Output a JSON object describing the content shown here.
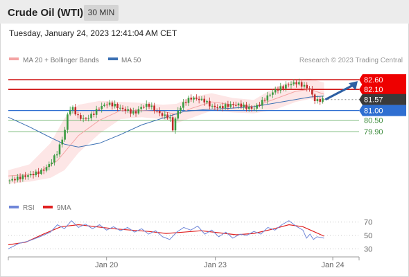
{
  "header": {
    "instrument": "Crude Oil (WTI)",
    "timeframe": "30 MIN",
    "timestamp": "Tuesday, January 24, 2023 12:41:04 AM CET",
    "source": "Research © 2023 Trading Central"
  },
  "legend": {
    "price": [
      {
        "label": "MA 20 + Bollinger Bands",
        "color": "#f4a3a3"
      },
      {
        "label": "MA 50",
        "color": "#3a6fb3"
      }
    ],
    "rsi": [
      {
        "label": "RSI",
        "color": "#6f86d8"
      },
      {
        "label": "9MA",
        "color": "#e02020"
      }
    ]
  },
  "colors": {
    "up": "#3a9a40",
    "down": "#c12a2a",
    "resistance": "#cc0000",
    "pivot": "#2f6fd1",
    "support": "#7cbb7c",
    "last": "#3a3a3a",
    "band": "#fde2e2",
    "arrow": "#2e5fa3"
  },
  "chart_data": [
    {
      "type": "candlestick",
      "title": "Crude Oil (WTI)",
      "timeframe": "30 MIN",
      "ylim": [
        77.1,
        83.0
      ],
      "x_ticks": [
        {
          "label": "Jan 20",
          "pos": 0.28
        },
        {
          "label": "Jan 23",
          "pos": 0.59
        },
        {
          "label": "Jan 24",
          "pos": 0.925
        }
      ],
      "levels": [
        {
          "value": 82.6,
          "label": "82.60",
          "kind": "resistance"
        },
        {
          "value": 82.1,
          "label": "82.10",
          "kind": "resistance"
        },
        {
          "value": 81.57,
          "label": "81.57",
          "kind": "last"
        },
        {
          "value": 81.0,
          "label": "81.00",
          "kind": "pivot"
        },
        {
          "value": 80.5,
          "label": "80.50",
          "kind": "support"
        },
        {
          "value": 79.9,
          "label": "79.90",
          "kind": "support"
        }
      ],
      "close_series": [
        [
          0.0,
          77.35
        ],
        [
          0.02,
          77.45
        ],
        [
          0.04,
          77.55
        ],
        [
          0.06,
          77.65
        ],
        [
          0.08,
          77.75
        ],
        [
          0.1,
          77.9
        ],
        [
          0.12,
          78.25
        ],
        [
          0.14,
          78.85
        ],
        [
          0.16,
          79.85
        ],
        [
          0.17,
          80.9
        ],
        [
          0.18,
          81.2
        ],
        [
          0.2,
          80.65
        ],
        [
          0.22,
          80.55
        ],
        [
          0.24,
          80.8
        ],
        [
          0.26,
          81.15
        ],
        [
          0.28,
          81.35
        ],
        [
          0.3,
          81.3
        ],
        [
          0.32,
          81.1
        ],
        [
          0.34,
          81.0
        ],
        [
          0.36,
          80.85
        ],
        [
          0.38,
          81.2
        ],
        [
          0.4,
          81.3
        ],
        [
          0.42,
          81.0
        ],
        [
          0.44,
          80.75
        ],
        [
          0.46,
          80.65
        ],
        [
          0.47,
          79.95
        ],
        [
          0.48,
          80.9
        ],
        [
          0.5,
          81.4
        ],
        [
          0.52,
          81.65
        ],
        [
          0.54,
          81.6
        ],
        [
          0.56,
          81.5
        ],
        [
          0.58,
          81.2
        ],
        [
          0.6,
          81.15
        ],
        [
          0.62,
          81.25
        ],
        [
          0.64,
          81.3
        ],
        [
          0.66,
          81.3
        ],
        [
          0.68,
          81.15
        ],
        [
          0.7,
          81.1
        ],
        [
          0.72,
          81.4
        ],
        [
          0.74,
          81.75
        ],
        [
          0.76,
          82.05
        ],
        [
          0.78,
          82.2
        ],
        [
          0.8,
          82.35
        ],
        [
          0.82,
          82.45
        ],
        [
          0.84,
          82.3
        ],
        [
          0.85,
          82.2
        ],
        [
          0.86,
          82.1
        ],
        [
          0.87,
          81.6
        ],
        [
          0.88,
          81.5
        ],
        [
          0.89,
          81.55
        ],
        [
          0.9,
          81.57
        ]
      ],
      "ma20": [
        [
          0.0,
          77.6
        ],
        [
          0.08,
          77.7
        ],
        [
          0.14,
          78.4
        ],
        [
          0.2,
          79.7
        ],
        [
          0.26,
          80.5
        ],
        [
          0.32,
          81.0
        ],
        [
          0.38,
          81.0
        ],
        [
          0.44,
          80.95
        ],
        [
          0.48,
          80.8
        ],
        [
          0.52,
          81.1
        ],
        [
          0.58,
          81.45
        ],
        [
          0.64,
          81.3
        ],
        [
          0.7,
          81.2
        ],
        [
          0.76,
          81.6
        ],
        [
          0.82,
          82.0
        ],
        [
          0.86,
          82.1
        ],
        [
          0.9,
          81.85
        ]
      ],
      "bollinger": {
        "upper": [
          [
            0.0,
            77.9
          ],
          [
            0.06,
            78.2
          ],
          [
            0.12,
            79.3
          ],
          [
            0.16,
            80.6
          ],
          [
            0.2,
            81.3
          ],
          [
            0.26,
            81.5
          ],
          [
            0.32,
            81.45
          ],
          [
            0.38,
            81.4
          ],
          [
            0.44,
            81.3
          ],
          [
            0.48,
            81.35
          ],
          [
            0.52,
            81.7
          ],
          [
            0.58,
            81.9
          ],
          [
            0.64,
            81.65
          ],
          [
            0.7,
            81.55
          ],
          [
            0.76,
            82.2
          ],
          [
            0.82,
            82.6
          ],
          [
            0.86,
            82.65
          ],
          [
            0.9,
            82.45
          ]
        ],
        "lower": [
          [
            0.0,
            77.2
          ],
          [
            0.06,
            77.3
          ],
          [
            0.12,
            77.5
          ],
          [
            0.16,
            77.9
          ],
          [
            0.2,
            78.8
          ],
          [
            0.26,
            79.8
          ],
          [
            0.32,
            80.55
          ],
          [
            0.38,
            80.65
          ],
          [
            0.44,
            80.55
          ],
          [
            0.48,
            80.35
          ],
          [
            0.52,
            80.6
          ],
          [
            0.58,
            81.0
          ],
          [
            0.64,
            80.9
          ],
          [
            0.7,
            80.85
          ],
          [
            0.76,
            81.05
          ],
          [
            0.82,
            81.45
          ],
          [
            0.86,
            81.6
          ],
          [
            0.9,
            81.35
          ]
        ]
      },
      "ma50": [
        [
          0.0,
          80.65
        ],
        [
          0.06,
          80.15
        ],
        [
          0.12,
          79.6
        ],
        [
          0.16,
          79.25
        ],
        [
          0.2,
          79.1
        ],
        [
          0.26,
          79.3
        ],
        [
          0.32,
          79.75
        ],
        [
          0.38,
          80.25
        ],
        [
          0.44,
          80.6
        ],
        [
          0.5,
          80.95
        ],
        [
          0.56,
          81.05
        ],
        [
          0.62,
          81.1
        ],
        [
          0.7,
          81.2
        ],
        [
          0.78,
          81.45
        ],
        [
          0.86,
          81.7
        ],
        [
          0.9,
          81.75
        ]
      ],
      "forecast_arrow": {
        "from": [
          0.9,
          81.57
        ],
        "to": [
          1.0,
          82.6
        ]
      }
    },
    {
      "type": "line",
      "title": "RSI",
      "ylim": [
        20,
        80
      ],
      "y_ticks": [
        70,
        50,
        30
      ],
      "series": [
        {
          "name": "RSI",
          "values": [
            [
              0.0,
              30
            ],
            [
              0.03,
              38
            ],
            [
              0.06,
              42
            ],
            [
              0.09,
              48
            ],
            [
              0.12,
              55
            ],
            [
              0.14,
              66
            ],
            [
              0.16,
              60
            ],
            [
              0.18,
              72
            ],
            [
              0.2,
              62
            ],
            [
              0.22,
              67
            ],
            [
              0.24,
              60
            ],
            [
              0.26,
              66
            ],
            [
              0.28,
              58
            ],
            [
              0.3,
              63
            ],
            [
              0.32,
              57
            ],
            [
              0.34,
              62
            ],
            [
              0.36,
              55
            ],
            [
              0.38,
              60
            ],
            [
              0.4,
              52
            ],
            [
              0.42,
              57
            ],
            [
              0.44,
              48
            ],
            [
              0.46,
              44
            ],
            [
              0.48,
              55
            ],
            [
              0.5,
              62
            ],
            [
              0.52,
              58
            ],
            [
              0.54,
              64
            ],
            [
              0.56,
              52
            ],
            [
              0.58,
              58
            ],
            [
              0.6,
              48
            ],
            [
              0.62,
              55
            ],
            [
              0.64,
              46
            ],
            [
              0.66,
              52
            ],
            [
              0.68,
              50
            ],
            [
              0.7,
              56
            ],
            [
              0.72,
              52
            ],
            [
              0.74,
              62
            ],
            [
              0.76,
              58
            ],
            [
              0.78,
              66
            ],
            [
              0.8,
              72
            ],
            [
              0.82,
              64
            ],
            [
              0.84,
              58
            ],
            [
              0.85,
              46
            ],
            [
              0.86,
              52
            ],
            [
              0.87,
              44
            ],
            [
              0.88,
              48
            ],
            [
              0.9,
              46
            ]
          ]
        },
        {
          "name": "9MA",
          "values": [
            [
              0.0,
              36
            ],
            [
              0.05,
              40
            ],
            [
              0.1,
              52
            ],
            [
              0.15,
              63
            ],
            [
              0.2,
              66
            ],
            [
              0.25,
              63
            ],
            [
              0.3,
              60
            ],
            [
              0.35,
              58
            ],
            [
              0.4,
              56
            ],
            [
              0.45,
              53
            ],
            [
              0.5,
              55
            ],
            [
              0.55,
              57
            ],
            [
              0.6,
              54
            ],
            [
              0.65,
              51
            ],
            [
              0.7,
              53
            ],
            [
              0.75,
              59
            ],
            [
              0.8,
              66
            ],
            [
              0.84,
              63
            ],
            [
              0.87,
              56
            ],
            [
              0.9,
              49
            ]
          ]
        }
      ]
    }
  ]
}
